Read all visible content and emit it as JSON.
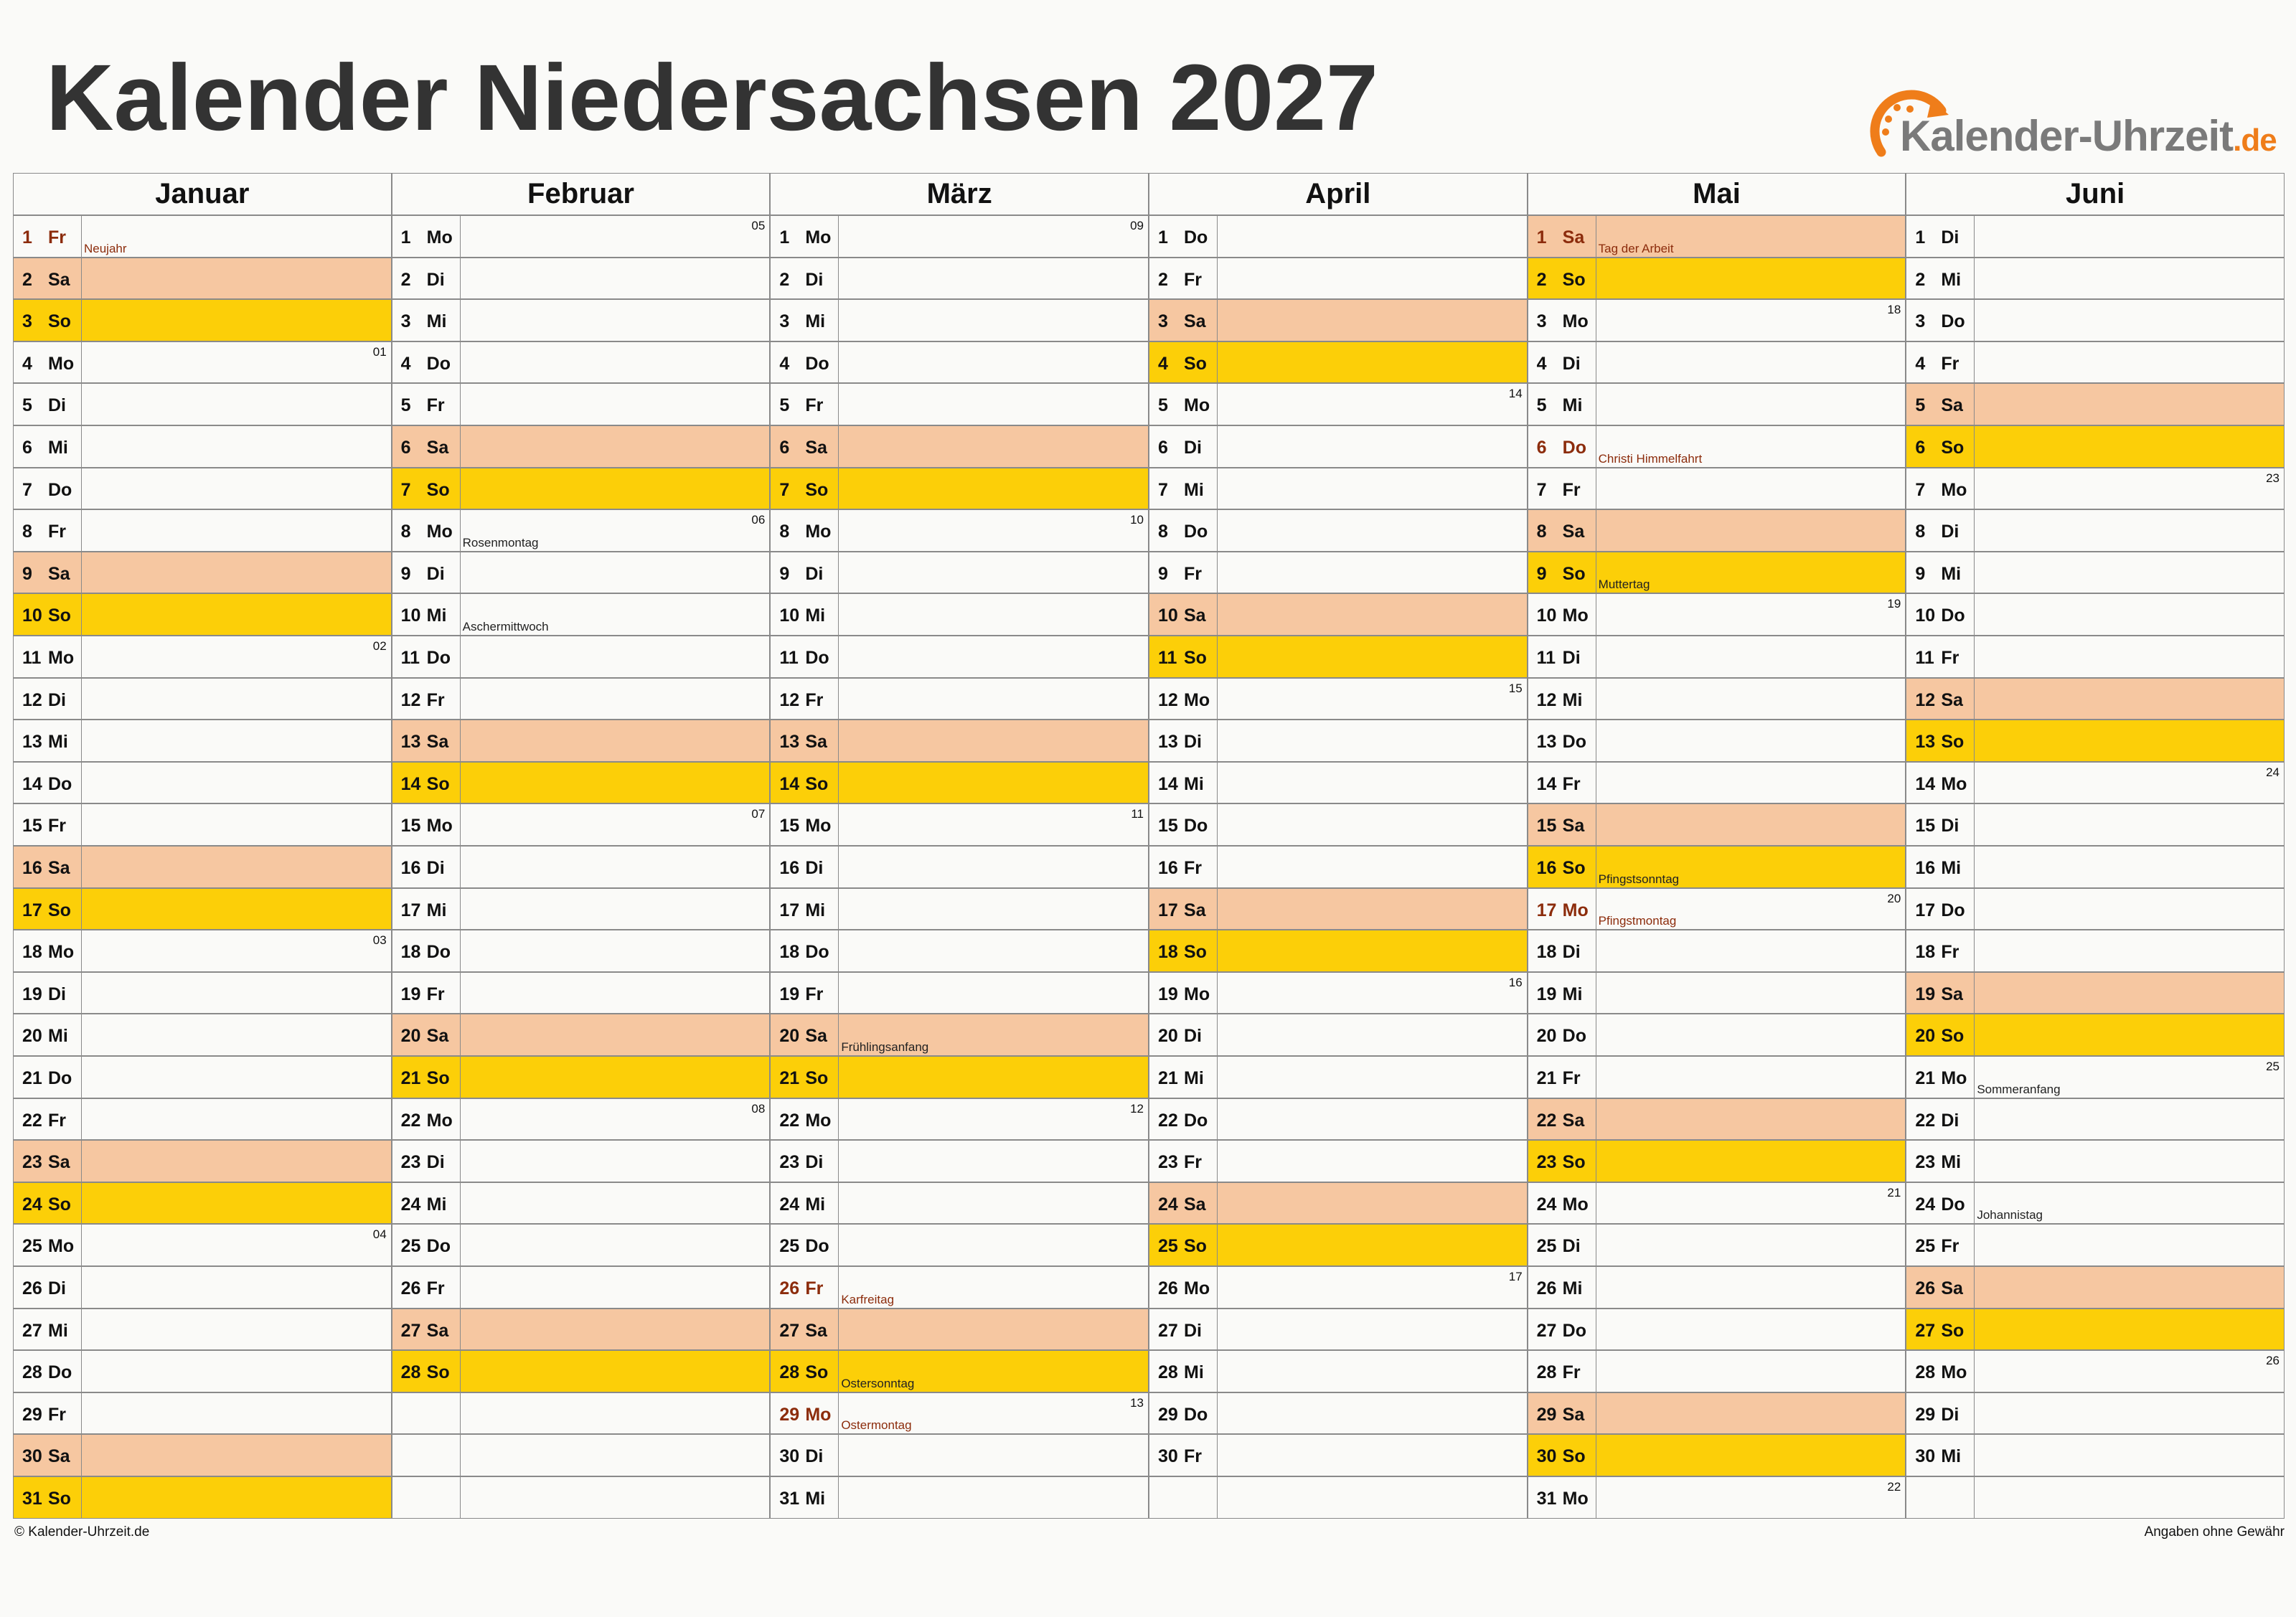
{
  "header": {
    "title": "Kalender Niedersachsen 2027",
    "logo": {
      "name": "Kalender-Uhrzeit",
      "tld": ".de"
    }
  },
  "colors": {
    "sat": "#f6c7a1",
    "sun": "#fccf08",
    "holiday": "#8c2c0c",
    "note": "#222222"
  },
  "months": [
    {
      "name": "Januar",
      "days": [
        {
          "n": 1,
          "w": "Fr",
          "hol": true,
          "note": "Neujahr"
        },
        {
          "n": 2,
          "w": "Sa",
          "bg": "sat"
        },
        {
          "n": 3,
          "w": "So",
          "bg": "sun"
        },
        {
          "n": 4,
          "w": "Mo",
          "kw": "01"
        },
        {
          "n": 5,
          "w": "Di"
        },
        {
          "n": 6,
          "w": "Mi"
        },
        {
          "n": 7,
          "w": "Do"
        },
        {
          "n": 8,
          "w": "Fr"
        },
        {
          "n": 9,
          "w": "Sa",
          "bg": "sat"
        },
        {
          "n": 10,
          "w": "So",
          "bg": "sun"
        },
        {
          "n": 11,
          "w": "Mo",
          "kw": "02"
        },
        {
          "n": 12,
          "w": "Di"
        },
        {
          "n": 13,
          "w": "Mi"
        },
        {
          "n": 14,
          "w": "Do"
        },
        {
          "n": 15,
          "w": "Fr"
        },
        {
          "n": 16,
          "w": "Sa",
          "bg": "sat"
        },
        {
          "n": 17,
          "w": "So",
          "bg": "sun"
        },
        {
          "n": 18,
          "w": "Mo",
          "kw": "03"
        },
        {
          "n": 19,
          "w": "Di"
        },
        {
          "n": 20,
          "w": "Mi"
        },
        {
          "n": 21,
          "w": "Do"
        },
        {
          "n": 22,
          "w": "Fr"
        },
        {
          "n": 23,
          "w": "Sa",
          "bg": "sat"
        },
        {
          "n": 24,
          "w": "So",
          "bg": "sun"
        },
        {
          "n": 25,
          "w": "Mo",
          "kw": "04"
        },
        {
          "n": 26,
          "w": "Di"
        },
        {
          "n": 27,
          "w": "Mi"
        },
        {
          "n": 28,
          "w": "Do"
        },
        {
          "n": 29,
          "w": "Fr"
        },
        {
          "n": 30,
          "w": "Sa",
          "bg": "sat"
        },
        {
          "n": 31,
          "w": "So",
          "bg": "sun"
        }
      ]
    },
    {
      "name": "Februar",
      "days": [
        {
          "n": 1,
          "w": "Mo",
          "kw": "05"
        },
        {
          "n": 2,
          "w": "Di"
        },
        {
          "n": 3,
          "w": "Mi"
        },
        {
          "n": 4,
          "w": "Do"
        },
        {
          "n": 5,
          "w": "Fr"
        },
        {
          "n": 6,
          "w": "Sa",
          "bg": "sat"
        },
        {
          "n": 7,
          "w": "So",
          "bg": "sun"
        },
        {
          "n": 8,
          "w": "Mo",
          "kw": "06",
          "note": "Rosenmontag"
        },
        {
          "n": 9,
          "w": "Di"
        },
        {
          "n": 10,
          "w": "Mi",
          "note": "Aschermittwoch"
        },
        {
          "n": 11,
          "w": "Do"
        },
        {
          "n": 12,
          "w": "Fr"
        },
        {
          "n": 13,
          "w": "Sa",
          "bg": "sat"
        },
        {
          "n": 14,
          "w": "So",
          "bg": "sun"
        },
        {
          "n": 15,
          "w": "Mo",
          "kw": "07"
        },
        {
          "n": 16,
          "w": "Di"
        },
        {
          "n": 17,
          "w": "Mi"
        },
        {
          "n": 18,
          "w": "Do"
        },
        {
          "n": 19,
          "w": "Fr"
        },
        {
          "n": 20,
          "w": "Sa",
          "bg": "sat"
        },
        {
          "n": 21,
          "w": "So",
          "bg": "sun"
        },
        {
          "n": 22,
          "w": "Mo",
          "kw": "08"
        },
        {
          "n": 23,
          "w": "Di"
        },
        {
          "n": 24,
          "w": "Mi"
        },
        {
          "n": 25,
          "w": "Do"
        },
        {
          "n": 26,
          "w": "Fr"
        },
        {
          "n": 27,
          "w": "Sa",
          "bg": "sat"
        },
        {
          "n": 28,
          "w": "So",
          "bg": "sun"
        }
      ]
    },
    {
      "name": "März",
      "days": [
        {
          "n": 1,
          "w": "Mo",
          "kw": "09"
        },
        {
          "n": 2,
          "w": "Di"
        },
        {
          "n": 3,
          "w": "Mi"
        },
        {
          "n": 4,
          "w": "Do"
        },
        {
          "n": 5,
          "w": "Fr"
        },
        {
          "n": 6,
          "w": "Sa",
          "bg": "sat"
        },
        {
          "n": 7,
          "w": "So",
          "bg": "sun"
        },
        {
          "n": 8,
          "w": "Mo",
          "kw": "10"
        },
        {
          "n": 9,
          "w": "Di"
        },
        {
          "n": 10,
          "w": "Mi"
        },
        {
          "n": 11,
          "w": "Do"
        },
        {
          "n": 12,
          "w": "Fr"
        },
        {
          "n": 13,
          "w": "Sa",
          "bg": "sat"
        },
        {
          "n": 14,
          "w": "So",
          "bg": "sun"
        },
        {
          "n": 15,
          "w": "Mo",
          "kw": "11"
        },
        {
          "n": 16,
          "w": "Di"
        },
        {
          "n": 17,
          "w": "Mi"
        },
        {
          "n": 18,
          "w": "Do"
        },
        {
          "n": 19,
          "w": "Fr"
        },
        {
          "n": 20,
          "w": "Sa",
          "bg": "sat",
          "note": "Frühlingsanfang"
        },
        {
          "n": 21,
          "w": "So",
          "bg": "sun"
        },
        {
          "n": 22,
          "w": "Mo",
          "kw": "12"
        },
        {
          "n": 23,
          "w": "Di"
        },
        {
          "n": 24,
          "w": "Mi"
        },
        {
          "n": 25,
          "w": "Do"
        },
        {
          "n": 26,
          "w": "Fr",
          "hol": true,
          "note": "Karfreitag"
        },
        {
          "n": 27,
          "w": "Sa",
          "bg": "sat"
        },
        {
          "n": 28,
          "w": "So",
          "bg": "sun",
          "note": "Ostersonntag"
        },
        {
          "n": 29,
          "w": "Mo",
          "kw": "13",
          "hol": true,
          "note": "Ostermontag"
        },
        {
          "n": 30,
          "w": "Di"
        },
        {
          "n": 31,
          "w": "Mi"
        }
      ]
    },
    {
      "name": "April",
      "days": [
        {
          "n": 1,
          "w": "Do"
        },
        {
          "n": 2,
          "w": "Fr"
        },
        {
          "n": 3,
          "w": "Sa",
          "bg": "sat"
        },
        {
          "n": 4,
          "w": "So",
          "bg": "sun"
        },
        {
          "n": 5,
          "w": "Mo",
          "kw": "14"
        },
        {
          "n": 6,
          "w": "Di"
        },
        {
          "n": 7,
          "w": "Mi"
        },
        {
          "n": 8,
          "w": "Do"
        },
        {
          "n": 9,
          "w": "Fr"
        },
        {
          "n": 10,
          "w": "Sa",
          "bg": "sat"
        },
        {
          "n": 11,
          "w": "So",
          "bg": "sun"
        },
        {
          "n": 12,
          "w": "Mo",
          "kw": "15"
        },
        {
          "n": 13,
          "w": "Di"
        },
        {
          "n": 14,
          "w": "Mi"
        },
        {
          "n": 15,
          "w": "Do"
        },
        {
          "n": 16,
          "w": "Fr"
        },
        {
          "n": 17,
          "w": "Sa",
          "bg": "sat"
        },
        {
          "n": 18,
          "w": "So",
          "bg": "sun"
        },
        {
          "n": 19,
          "w": "Mo",
          "kw": "16"
        },
        {
          "n": 20,
          "w": "Di"
        },
        {
          "n": 21,
          "w": "Mi"
        },
        {
          "n": 22,
          "w": "Do"
        },
        {
          "n": 23,
          "w": "Fr"
        },
        {
          "n": 24,
          "w": "Sa",
          "bg": "sat"
        },
        {
          "n": 25,
          "w": "So",
          "bg": "sun"
        },
        {
          "n": 26,
          "w": "Mo",
          "kw": "17"
        },
        {
          "n": 27,
          "w": "Di"
        },
        {
          "n": 28,
          "w": "Mi"
        },
        {
          "n": 29,
          "w": "Do"
        },
        {
          "n": 30,
          "w": "Fr"
        }
      ]
    },
    {
      "name": "Mai",
      "days": [
        {
          "n": 1,
          "w": "Sa",
          "bg": "sat",
          "hol": true,
          "note": "Tag der Arbeit"
        },
        {
          "n": 2,
          "w": "So",
          "bg": "sun"
        },
        {
          "n": 3,
          "w": "Mo",
          "kw": "18"
        },
        {
          "n": 4,
          "w": "Di"
        },
        {
          "n": 5,
          "w": "Mi"
        },
        {
          "n": 6,
          "w": "Do",
          "hol": true,
          "note": "Christi Himmelfahrt"
        },
        {
          "n": 7,
          "w": "Fr"
        },
        {
          "n": 8,
          "w": "Sa",
          "bg": "sat"
        },
        {
          "n": 9,
          "w": "So",
          "bg": "sun",
          "note": "Muttertag"
        },
        {
          "n": 10,
          "w": "Mo",
          "kw": "19"
        },
        {
          "n": 11,
          "w": "Di"
        },
        {
          "n": 12,
          "w": "Mi"
        },
        {
          "n": 13,
          "w": "Do"
        },
        {
          "n": 14,
          "w": "Fr"
        },
        {
          "n": 15,
          "w": "Sa",
          "bg": "sat"
        },
        {
          "n": 16,
          "w": "So",
          "bg": "sun",
          "note": "Pfingstsonntag"
        },
        {
          "n": 17,
          "w": "Mo",
          "kw": "20",
          "hol": true,
          "note": "Pfingstmontag"
        },
        {
          "n": 18,
          "w": "Di"
        },
        {
          "n": 19,
          "w": "Mi"
        },
        {
          "n": 20,
          "w": "Do"
        },
        {
          "n": 21,
          "w": "Fr"
        },
        {
          "n": 22,
          "w": "Sa",
          "bg": "sat"
        },
        {
          "n": 23,
          "w": "So",
          "bg": "sun"
        },
        {
          "n": 24,
          "w": "Mo",
          "kw": "21"
        },
        {
          "n": 25,
          "w": "Di"
        },
        {
          "n": 26,
          "w": "Mi"
        },
        {
          "n": 27,
          "w": "Do"
        },
        {
          "n": 28,
          "w": "Fr"
        },
        {
          "n": 29,
          "w": "Sa",
          "bg": "sat"
        },
        {
          "n": 30,
          "w": "So",
          "bg": "sun"
        },
        {
          "n": 31,
          "w": "Mo",
          "kw": "22"
        }
      ]
    },
    {
      "name": "Juni",
      "days": [
        {
          "n": 1,
          "w": "Di"
        },
        {
          "n": 2,
          "w": "Mi"
        },
        {
          "n": 3,
          "w": "Do"
        },
        {
          "n": 4,
          "w": "Fr"
        },
        {
          "n": 5,
          "w": "Sa",
          "bg": "sat"
        },
        {
          "n": 6,
          "w": "So",
          "bg": "sun"
        },
        {
          "n": 7,
          "w": "Mo",
          "kw": "23"
        },
        {
          "n": 8,
          "w": "Di"
        },
        {
          "n": 9,
          "w": "Mi"
        },
        {
          "n": 10,
          "w": "Do"
        },
        {
          "n": 11,
          "w": "Fr"
        },
        {
          "n": 12,
          "w": "Sa",
          "bg": "sat"
        },
        {
          "n": 13,
          "w": "So",
          "bg": "sun"
        },
        {
          "n": 14,
          "w": "Mo",
          "kw": "24"
        },
        {
          "n": 15,
          "w": "Di"
        },
        {
          "n": 16,
          "w": "Mi"
        },
        {
          "n": 17,
          "w": "Do"
        },
        {
          "n": 18,
          "w": "Fr"
        },
        {
          "n": 19,
          "w": "Sa",
          "bg": "sat"
        },
        {
          "n": 20,
          "w": "So",
          "bg": "sun"
        },
        {
          "n": 21,
          "w": "Mo",
          "kw": "25",
          "note": "Sommeranfang"
        },
        {
          "n": 22,
          "w": "Di"
        },
        {
          "n": 23,
          "w": "Mi"
        },
        {
          "n": 24,
          "w": "Do",
          "note": "Johannistag"
        },
        {
          "n": 25,
          "w": "Fr"
        },
        {
          "n": 26,
          "w": "Sa",
          "bg": "sat"
        },
        {
          "n": 27,
          "w": "So",
          "bg": "sun"
        },
        {
          "n": 28,
          "w": "Mo",
          "kw": "26"
        },
        {
          "n": 29,
          "w": "Di"
        },
        {
          "n": 30,
          "w": "Mi"
        }
      ]
    }
  ],
  "footer": {
    "left": "© Kalender-Uhrzeit.de",
    "right": "Angaben ohne Gewähr"
  }
}
